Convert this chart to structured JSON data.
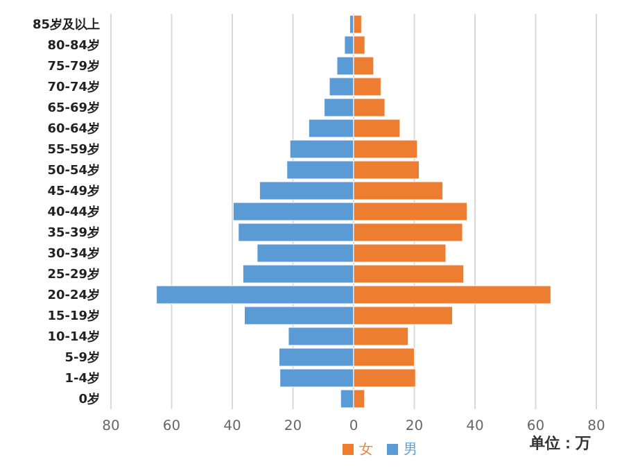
{
  "chart_data": {
    "type": "bar",
    "orientation": "horizontal",
    "stacked": true,
    "categories": [
      "85岁及以上",
      "80-84岁",
      "75-79岁",
      "70-74岁",
      "65-69岁",
      "60-64岁",
      "55-59岁",
      "50-54岁",
      "45-49岁",
      "40-44岁",
      "35-39岁",
      "30-34岁",
      "25-29岁",
      "20-24岁",
      "15-19岁",
      "10-14岁",
      "5-9岁",
      "1-4岁",
      "0岁"
    ],
    "series": [
      {
        "name": "男",
        "color": "#5b9bd5",
        "values": [
          -1.3,
          -3,
          -5.5,
          -8,
          -9.7,
          -14.8,
          -21,
          -22,
          -31,
          -39.7,
          -38,
          -31.8,
          -36.5,
          -65,
          -36,
          -21.5,
          -24.6,
          -24.3,
          -4.3
        ]
      },
      {
        "name": "女",
        "color": "#ed7d31",
        "values": [
          2.6,
          3.7,
          6.6,
          9,
          10.3,
          15.3,
          21,
          21.6,
          29.4,
          37.4,
          35.9,
          30.4,
          36.3,
          65,
          32.6,
          18,
          20,
          20.4,
          3.6
        ]
      }
    ],
    "xlim": [
      -80,
      80
    ],
    "xticks": [
      {
        "value": -80,
        "label": "80"
      },
      {
        "value": -60,
        "label": "60"
      },
      {
        "value": -40,
        "label": "40"
      },
      {
        "value": -20,
        "label": "20"
      },
      0,
      20,
      40,
      60,
      80
    ],
    "grid": "x",
    "legend": "bottom",
    "annotations": [
      "单位：万"
    ]
  }
}
